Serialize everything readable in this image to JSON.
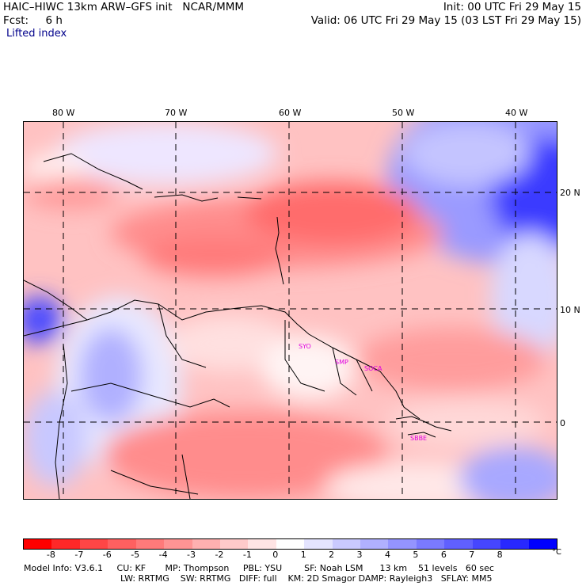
{
  "header": {
    "model_title": "HAIC–HIWC 13km ARW–GFS init   NCAR/MMM",
    "forecast": "Fcst:     6 h",
    "field": "Lifted index",
    "init": "Init: 00 UTC Fri 29 May 15",
    "valid": "Valid: 06 UTC Fri 29 May 15 (03 LST Fri 29 May 15)"
  },
  "map": {
    "lon_labels": [
      "80 W",
      "70 W",
      "60 W",
      "50 W",
      "40 W"
    ],
    "lat_labels": [
      "20 N",
      "10 N",
      "0"
    ],
    "stations": [
      "SYO",
      "SMP",
      "SOCA",
      "SBBE"
    ]
  },
  "colorbar": {
    "unit": "°C",
    "labels": [
      "-8",
      "-7",
      "-6",
      "-5",
      "-4",
      "-3",
      "-2",
      "-1",
      "0",
      "1",
      "2",
      "3",
      "4",
      "5",
      "6",
      "7",
      "8"
    ],
    "colors": [
      "#ff0000",
      "#ff2828",
      "#ff4646",
      "#ff6060",
      "#ff7a7a",
      "#ff9494",
      "#ffb0b0",
      "#ffcaca",
      "#ffe4e4",
      "#ffffff",
      "#e4e4ff",
      "#cacaff",
      "#b0b0ff",
      "#9494ff",
      "#7a7aff",
      "#6060ff",
      "#4646ff",
      "#2828ff",
      "#0000ff"
    ]
  },
  "model_info": {
    "line1": "Model Info: V3.6.1     CU: KF       MP: Thompson     PBL: YSU        SF: Noah LSM      13 km    51 levels   60 sec",
    "line2": "LW: RRTMG    SW: RRTMG   DIFF: full    KM: 2D Smagor DAMP: Rayleigh3   SFLAY: MM5"
  }
}
